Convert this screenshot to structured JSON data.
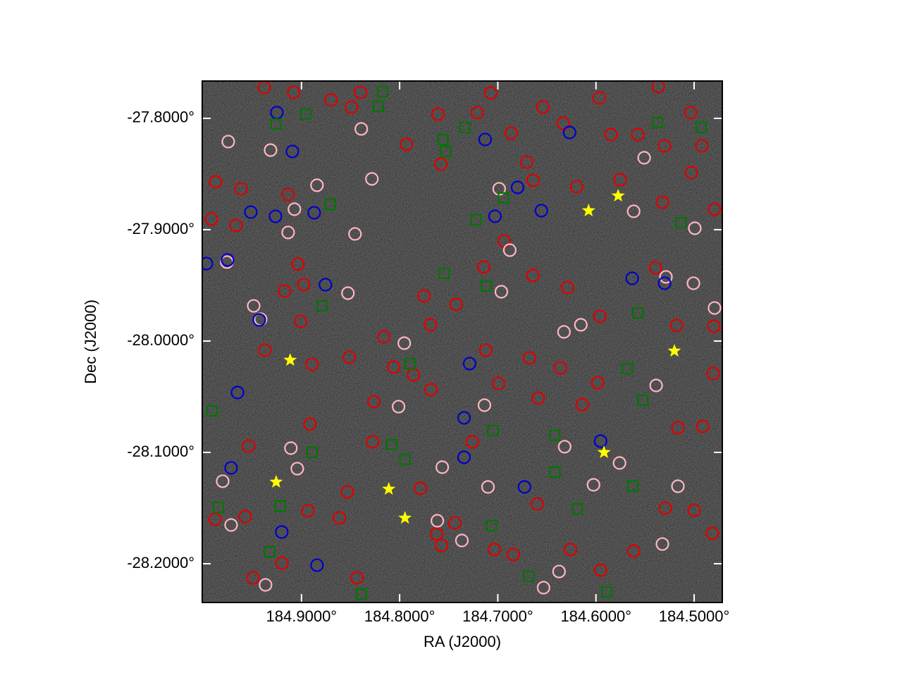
{
  "chart_data": {
    "type": "scatter",
    "xlabel": "RA (J2000)",
    "ylabel": "Dec (J2000)",
    "xlim": [
      185.0011,
      184.4713
    ],
    "ylim": [
      -28.2348,
      -27.7665
    ],
    "xticks": [
      {
        "value": 184.9,
        "label": "184.9000°"
      },
      {
        "value": 184.8,
        "label": "184.8000°"
      },
      {
        "value": 184.7,
        "label": "184.7000°"
      },
      {
        "value": 184.6,
        "label": "184.6000°"
      },
      {
        "value": 184.5,
        "label": "184.5000°"
      }
    ],
    "yticks": [
      {
        "value": -27.8,
        "label": "-27.8000°"
      },
      {
        "value": -27.9,
        "label": "-27.9000°"
      },
      {
        "value": -28.0,
        "label": "-28.0000°"
      },
      {
        "value": -28.1,
        "label": "-28.1000°"
      },
      {
        "value": -28.2,
        "label": "-28.2000°"
      }
    ],
    "background": "#2a2a2a",
    "series": [
      {
        "marker": "circle",
        "color": "#e00000",
        "x": [
          184.938,
          184.9079,
          184.8699,
          184.8398,
          184.7072,
          184.6541,
          184.5968,
          184.5366,
          184.8491,
          184.7609,
          184.7208,
          184.6864,
          184.6333,
          184.5846,
          184.5573,
          184.5301,
          184.5036,
          184.4921,
          184.7932,
          184.758,
          184.6706,
          184.6642,
          184.6197,
          184.5753,
          184.5323,
          184.5029,
          184.4792,
          184.9136,
          184.9616,
          184.9875,
          184.9917,
          184.9667,
          184.9036,
          184.8978,
          184.9172,
          184.9007,
          184.9373,
          184.8892,
          184.8512,
          184.8161,
          184.7753,
          184.7423,
          184.7688,
          184.7143,
          184.6935,
          184.6642,
          184.629,
          184.5961,
          184.5394,
          184.5179,
          184.4799,
          184.4806,
          184.5165,
          184.4914,
          184.9882,
          184.9573,
          184.9494,
          184.92,
          184.9538,
          184.8914,
          184.8935,
          184.8613,
          184.8534,
          184.8434,
          184.7789,
          184.7574,
          184.7437,
          184.7036,
          184.6598,
          184.6262,
          184.5616,
          184.5294,
          184.5,
          184.4813,
          184.614,
          184.6588,
          184.7258,
          184.8262,
          184.8276,
          184.7681,
          184.6362,
          184.6677,
          184.6993,
          184.7122,
          184.5982,
          184.5953,
          184.6842,
          184.7624,
          184.8061,
          184.786
        ],
        "y": [
          -27.7722,
          -27.7766,
          -27.7835,
          -27.7766,
          -27.7772,
          -27.7899,
          -27.7816,
          -27.7715,
          -27.7899,
          -27.7962,
          -27.7949,
          -27.8133,
          -27.8044,
          -27.8146,
          -27.8146,
          -27.8247,
          -27.7949,
          -27.8247,
          -27.8234,
          -27.8411,
          -27.8392,
          -27.8557,
          -27.8614,
          -27.8551,
          -27.8753,
          -27.8487,
          -27.8816,
          -27.8683,
          -27.8633,
          -27.857,
          -27.8905,
          -27.8962,
          -27.931,
          -27.9494,
          -27.9551,
          -27.9823,
          -28.0082,
          -28.0209,
          -28.0146,
          -27.9962,
          -27.9595,
          -27.9671,
          -27.9854,
          -27.9335,
          -27.9101,
          -27.9411,
          -27.9519,
          -27.9778,
          -27.9342,
          -27.9861,
          -27.9867,
          -28.0291,
          -28.0778,
          -28.0766,
          -28.1601,
          -28.1576,
          -28.2127,
          -28.1994,
          -28.0943,
          -28.0747,
          -28.1525,
          -28.1589,
          -28.1354,
          -28.2127,
          -28.1323,
          -28.1835,
          -28.1633,
          -28.1873,
          -28.1462,
          -28.1873,
          -28.1886,
          -28.15,
          -28.1519,
          -28.1728,
          -28.057,
          -28.0513,
          -28.0905,
          -28.0544,
          -28.0905,
          -28.0437,
          -28.0241,
          -28.0152,
          -28.038,
          -28.0082,
          -28.0373,
          -28.2057,
          -28.1918,
          -28.1734,
          -28.0234,
          -28.0304
        ]
      },
      {
        "marker": "circle",
        "color": "#ffb6c1",
        "x": [
          184.9746,
          184.9315,
          184.976,
          184.9487,
          184.9416,
          184.9072,
          184.9136,
          184.8842,
          184.8455,
          184.8283,
          184.8527,
          184.7953,
          184.8011,
          184.7616,
          184.7566,
          184.7366,
          184.7136,
          184.71,
          184.6964,
          184.6878,
          184.6986,
          184.6319,
          184.6326,
          184.6154,
          184.6025,
          184.576,
          184.5616,
          184.5509,
          184.5387,
          184.5287,
          184.5007,
          184.5165,
          184.5323,
          184.4993,
          184.4792,
          184.9108,
          184.9043,
          184.9366,
          184.9717,
          184.9803,
          184.8391,
          184.6534,
          184.6376
        ],
        "y": [
          -27.8209,
          -27.8285,
          -27.9291,
          -27.9684,
          -27.9804,
          -27.8816,
          -27.9025,
          -27.8601,
          -27.9038,
          -27.8544,
          -27.957,
          -28.0019,
          -28.0589,
          -28.1614,
          -28.1133,
          -28.1791,
          -28.0576,
          -28.131,
          -27.9557,
          -27.9184,
          -27.8633,
          -28.0949,
          -27.9918,
          -27.9854,
          -28.1291,
          -28.1095,
          -27.8835,
          -27.8354,
          -28.0399,
          -27.9424,
          -27.9481,
          -28.1304,
          -28.1823,
          -27.8987,
          -27.9703,
          -28.0962,
          -28.1146,
          -28.219,
          -28.1652,
          -28.1259,
          -27.8095,
          -28.2215,
          -28.207
        ]
      },
      {
        "marker": "circle",
        "color": "#0000cc",
        "x": [
          184.9251,
          184.9093,
          184.9516,
          184.9265,
          184.8871,
          184.9968,
          184.9753,
          184.8756,
          184.943,
          184.9652,
          184.9717,
          184.9201,
          184.8842,
          184.7129,
          184.6269,
          184.6799,
          184.6556,
          184.7029,
          184.7287,
          184.7344,
          184.7344,
          184.6728,
          184.5953,
          184.5631,
          184.5301
        ],
        "y": [
          -27.7949,
          -27.8297,
          -27.8842,
          -27.888,
          -27.8848,
          -27.9304,
          -27.9272,
          -27.9494,
          -27.981,
          -28.0462,
          -28.1139,
          -28.1715,
          -28.2013,
          -27.819,
          -27.8127,
          -27.862,
          -27.8829,
          -27.888,
          -28.0203,
          -28.069,
          -28.1044,
          -28.131,
          -28.0899,
          -27.9437,
          -27.9481
        ]
      },
      {
        "marker": "square",
        "color": "#007700",
        "x": [
          184.9258,
          184.8957,
          184.8706,
          184.8792,
          184.8892,
          184.9323,
          184.9215,
          184.9846,
          184.991,
          184.8176,
          184.8219,
          184.7559,
          184.753,
          184.7337,
          184.7222,
          184.6943,
          184.7115,
          184.7545,
          184.7896,
          184.8082,
          184.7946,
          184.705,
          184.7065,
          184.6685,
          184.6419,
          184.6419,
          184.619,
          184.5889,
          184.5681,
          184.5624,
          184.5573,
          184.5523,
          184.5373,
          184.5136,
          184.4928,
          184.8391
        ],
        "y": [
          -27.8051,
          -27.7962,
          -27.8772,
          -27.9684,
          -28.1,
          -28.1892,
          -28.1481,
          -28.1494,
          -28.0627,
          -27.7759,
          -27.7892,
          -27.819,
          -27.8297,
          -27.8082,
          -27.8911,
          -27.8715,
          -27.9506,
          -27.9392,
          -28.0203,
          -28.093,
          -28.1063,
          -28.0804,
          -28.1658,
          -28.2114,
          -28.0848,
          -28.1177,
          -28.1506,
          -28.2253,
          -28.0247,
          -28.1304,
          -27.9747,
          -28.0532,
          -27.8038,
          -27.8937,
          -27.8082,
          -28.2272
        ]
      },
      {
        "marker": "star",
        "color": "#ffff00",
        "x": [
          184.9115,
          184.6075,
          184.5774,
          184.5201,
          184.9258,
          184.8111,
          184.7946,
          184.5918
        ],
        "y": [
          -28.0171,
          -27.8829,
          -27.8696,
          -28.0089,
          -28.1266,
          -28.1329,
          -28.1589,
          -28.1
        ]
      }
    ]
  }
}
